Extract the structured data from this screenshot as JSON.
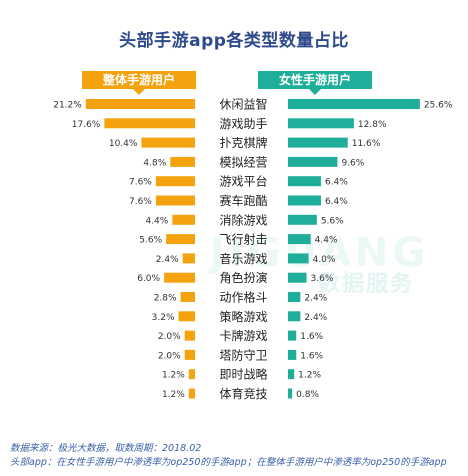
{
  "chart_data": {
    "type": "bar",
    "title": "头部手游app各类型数量占比",
    "categories": [
      "休闲益智",
      "游戏助手",
      "扑克棋牌",
      "模拟经营",
      "游戏平台",
      "赛车跑酷",
      "消除游戏",
      "飞行射击",
      "音乐游戏",
      "角色扮演",
      "动作格斗",
      "策略游戏",
      "卡牌游戏",
      "塔防守卫",
      "即时战略",
      "体育竞技"
    ],
    "series": [
      {
        "name": "整体手游用户",
        "values": [
          21.2,
          17.6,
          10.4,
          4.8,
          7.6,
          7.6,
          4.4,
          5.6,
          2.4,
          6.0,
          2.8,
          3.2,
          2.0,
          2.0,
          1.2,
          1.2
        ],
        "labels": [
          "21.2%",
          "17.6%",
          "10.4%",
          "4.8%",
          "7.6%",
          "7.6%",
          "4.4%",
          "5.6%",
          "2.4%",
          "6.0%",
          "2.8%",
          "3.2%",
          "2.0%",
          "2.0%",
          "1.2%",
          "1.2%"
        ]
      },
      {
        "name": "女性手游用户",
        "values": [
          25.6,
          12.8,
          11.6,
          9.6,
          6.4,
          6.4,
          5.6,
          4.4,
          4.0,
          3.6,
          2.4,
          2.4,
          1.6,
          1.6,
          1.2,
          0.8
        ],
        "labels": [
          "25.6%",
          "12.8%",
          "11.6%",
          "9.6%",
          "6.4%",
          "6.4%",
          "5.6%",
          "4.4%",
          "4.0%",
          "3.6%",
          "2.4%",
          "2.4%",
          "1.6%",
          "1.6%",
          "1.2%",
          "0.8%"
        ]
      }
    ]
  },
  "colors": {
    "left": "#f4a30f",
    "right": "#1fae9a",
    "title": "#2e4a8c"
  },
  "watermark": {
    "text": "数据服务",
    "logo": "JIGUANG"
  },
  "footer": {
    "line1": "数据来源：极光大数据，取数周期：2018.02",
    "line2": "头部app：在女性手游用户中渗透率为op250的手游app；在整体手游用户中渗透率为op250的手游app"
  }
}
